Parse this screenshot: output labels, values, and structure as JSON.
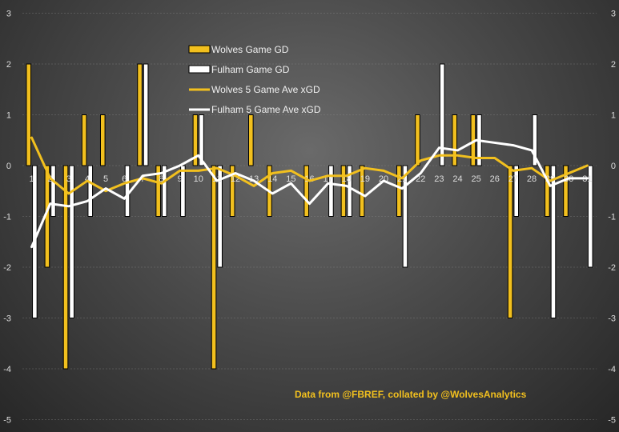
{
  "chart_data": {
    "type": "bar",
    "categories": [
      "1",
      "2",
      "3",
      "4",
      "5",
      "6",
      "7",
      "8",
      "9",
      "10",
      "11",
      "12",
      "13",
      "14",
      "15",
      "16",
      "17",
      "18",
      "19",
      "20",
      "21",
      "22",
      "23",
      "24",
      "25",
      "26",
      "27",
      "28",
      "29",
      "30",
      "31"
    ],
    "series": [
      {
        "name": "Wolves Game GD",
        "kind": "bar",
        "color": "#f2c01e",
        "values": [
          2,
          -2,
          -4,
          1,
          1,
          0,
          2,
          -1,
          0,
          1,
          -4,
          -1,
          1,
          -1,
          0,
          -1,
          0,
          -1,
          -1,
          0,
          -1,
          1,
          0,
          1,
          1,
          0,
          -3,
          0,
          -1,
          -1,
          0
        ]
      },
      {
        "name": "Fulham Game GD",
        "kind": "bar",
        "color": "#ffffff",
        "values": [
          -3,
          -1,
          -3,
          -1,
          0,
          -1,
          2,
          -1,
          -1,
          1,
          -2,
          0,
          0,
          0,
          0,
          0,
          -1,
          -1,
          0,
          0,
          -2,
          0,
          2,
          0,
          1,
          0,
          -1,
          1,
          -3,
          0,
          -2
        ]
      },
      {
        "name": "Wolves 5 Game Ave xGD",
        "kind": "line",
        "color": "#f2c01e",
        "values": [
          0.55,
          -0.25,
          -0.55,
          -0.3,
          -0.5,
          -0.35,
          -0.25,
          -0.35,
          -0.1,
          -0.1,
          -0.05,
          -0.2,
          -0.4,
          -0.15,
          -0.1,
          -0.3,
          -0.2,
          -0.2,
          -0.05,
          -0.1,
          -0.25,
          0.1,
          0.2,
          0.2,
          0.15,
          0.15,
          -0.1,
          -0.05,
          -0.3,
          -0.15,
          0.0
        ]
      },
      {
        "name": "Fulham 5 Game Ave xGD",
        "kind": "line",
        "color": "#ffffff",
        "values": [
          -1.6,
          -0.75,
          -0.8,
          -0.7,
          -0.45,
          -0.65,
          -0.2,
          -0.15,
          0.0,
          0.2,
          -0.3,
          -0.15,
          -0.3,
          -0.55,
          -0.35,
          -0.75,
          -0.35,
          -0.4,
          -0.6,
          -0.3,
          -0.45,
          -0.15,
          0.35,
          0.3,
          0.5,
          0.45,
          0.4,
          0.3,
          -0.4,
          -0.25,
          -0.25
        ]
      }
    ],
    "ylim": [
      -5,
      3
    ],
    "yticks": [
      "-5",
      "-4",
      "-3",
      "-2",
      "-1",
      "0",
      "1",
      "2",
      "3"
    ],
    "grid": true,
    "legend_position": "top-left-center",
    "title": "",
    "xlabel": "",
    "ylabel": "",
    "annotation": "Data from @FBREF, collated by @WolvesAnalytics"
  }
}
